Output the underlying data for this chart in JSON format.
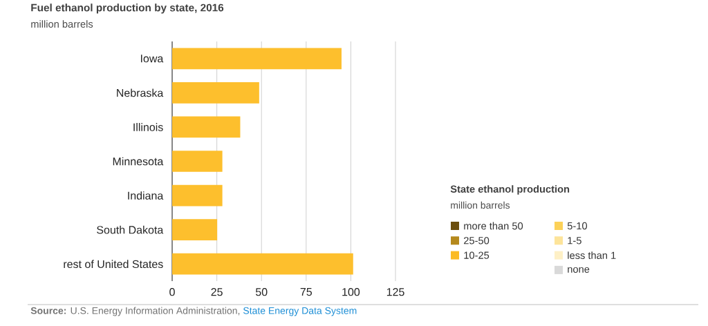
{
  "chart_data": [
    {
      "type": "bar",
      "orientation": "horizontal",
      "title": "Fuel ethanol production by state, 2016",
      "subtitle": "million barrels",
      "categories": [
        "Iowa",
        "Nebraska",
        "Illinois",
        "Minnesota",
        "Indiana",
        "South Dakota",
        "rest of United States"
      ],
      "values": [
        94.8,
        48.7,
        38.1,
        28.1,
        28.1,
        25.2,
        101.3
      ],
      "color": "#fdbf2d",
      "xlim": [
        0,
        125
      ],
      "xticks": [
        0,
        25,
        50,
        75,
        100,
        125
      ],
      "grid": "x",
      "annotations": [
        "**Source:** U.S. Energy Information Administration,",
        "State Energy Data System"
      ]
    },
    {
      "type": "other",
      "title": "State ethanol production",
      "subtitle": "million barrels",
      "categories": [
        "more than 50",
        "25-50",
        "10-25",
        "5-10",
        "1-5",
        "less than 1",
        "none"
      ],
      "colors": [
        "#6b4e0e",
        "#b5891c",
        "#fbbb25",
        "#fcd158",
        "#fde49a",
        "#fef0c6",
        "#d9d9d9"
      ]
    }
  ]
}
